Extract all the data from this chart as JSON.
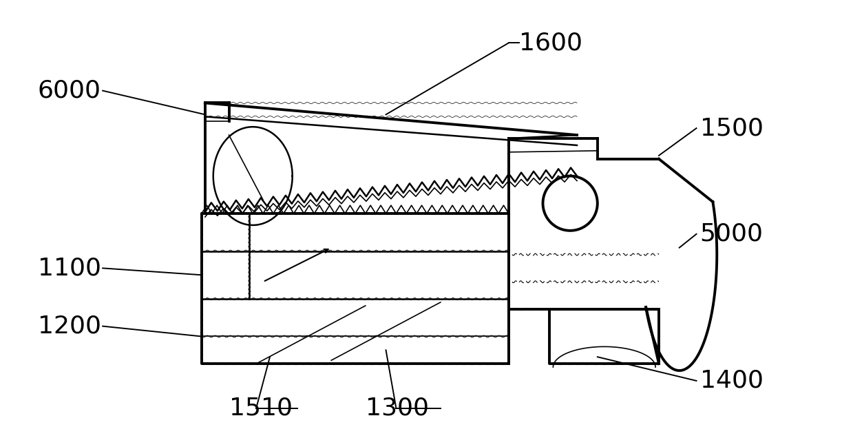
{
  "bg_color": "#ffffff",
  "line_color": "#000000",
  "fig_width": 12.39,
  "fig_height": 6.36,
  "label_fontsize": 26
}
